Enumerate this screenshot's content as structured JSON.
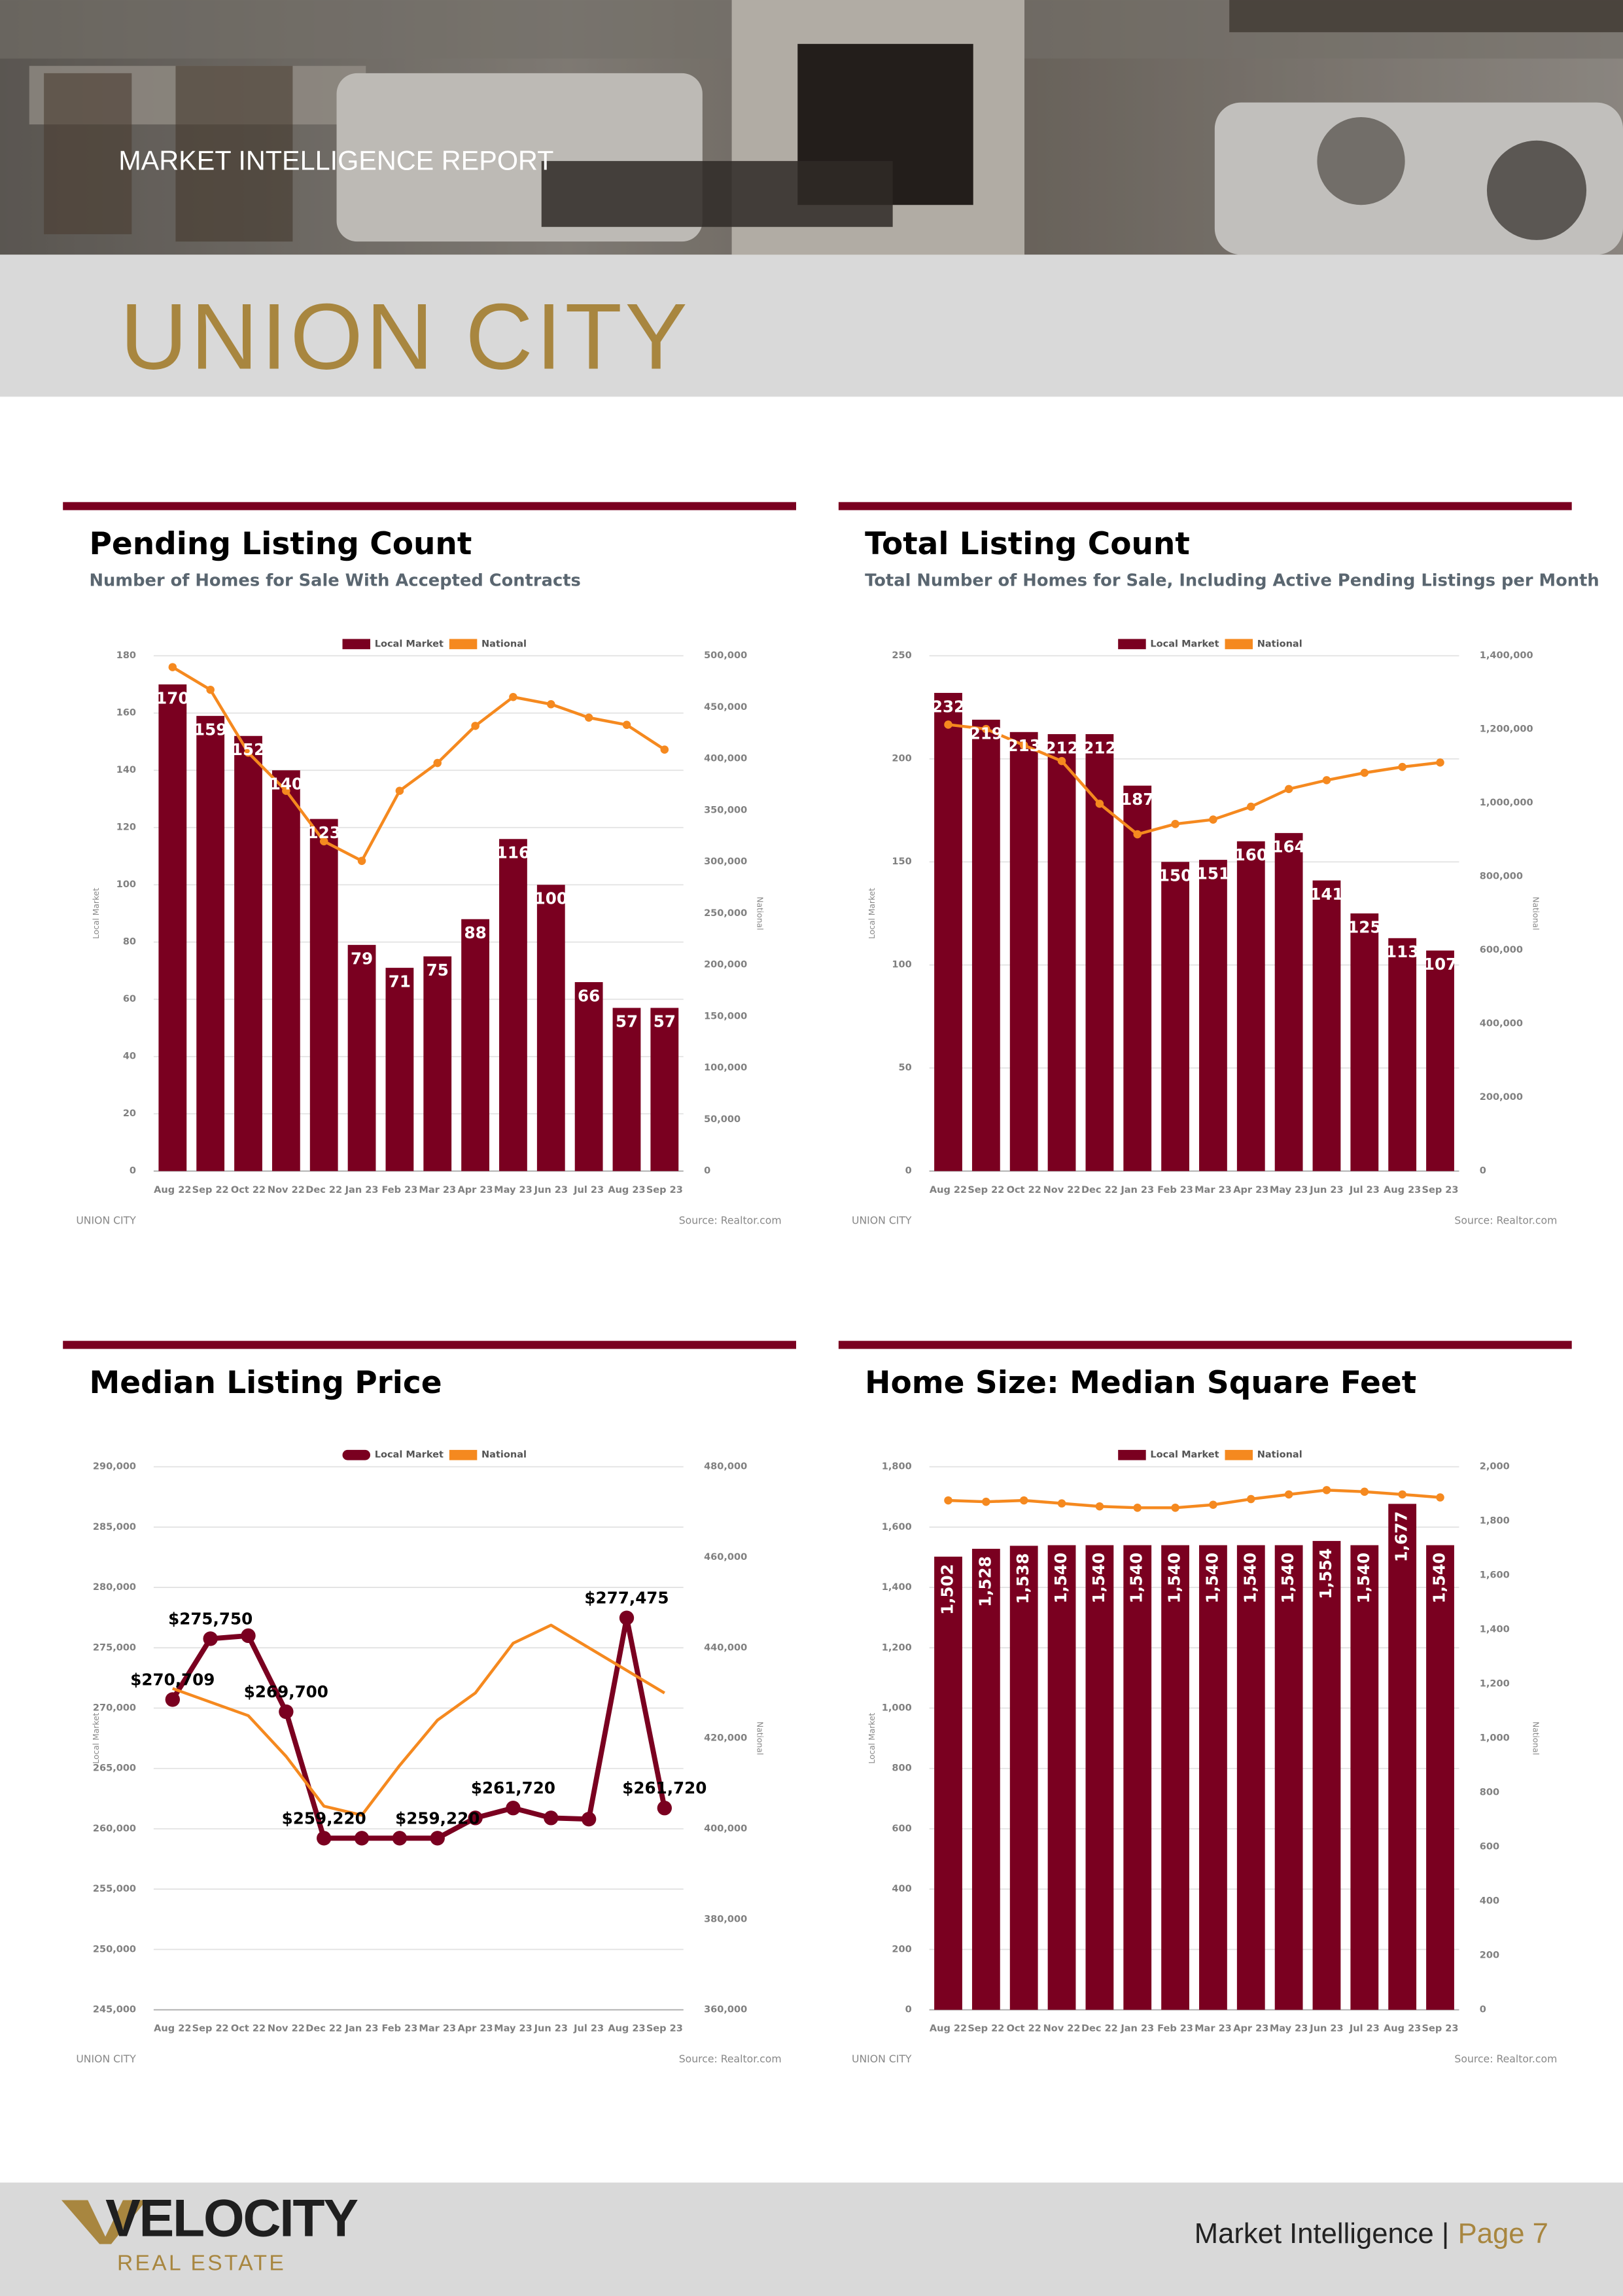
{
  "header": {
    "kicker": "MARKET INTELLIGENCE REPORT",
    "title": "UNION CITY"
  },
  "chart_data": [
    {
      "type": "combo",
      "title": "Pending Listing Count",
      "subtitle": "Number of Homes for Sale With Accepted Contracts",
      "categories": [
        "Aug 22",
        "Sep 22",
        "Oct 22",
        "Nov 22",
        "Dec 22",
        "Jan 23",
        "Feb 23",
        "Mar 23",
        "Apr 23",
        "May 23",
        "Jun 23",
        "Jul 23",
        "Aug 23",
        "Sep 23"
      ],
      "series": [
        {
          "name": "Local Market",
          "color": "#7a0020",
          "type": "bar",
          "axis": "y",
          "values": [
            170,
            159,
            152,
            140,
            123,
            79,
            71,
            75,
            88,
            116,
            100,
            66,
            57,
            57
          ]
        },
        {
          "name": "National",
          "color": "#f5891f",
          "type": "line",
          "axis": "y2",
          "markers": true,
          "values": [
            489000,
            467000,
            406000,
            369000,
            320000,
            301000,
            369000,
            396000,
            432000,
            460000,
            453000,
            440000,
            433000,
            409000
          ]
        }
      ],
      "ylim": [
        0,
        180
      ],
      "yticks": [
        0,
        20,
        40,
        60,
        80,
        100,
        120,
        140,
        160,
        180
      ],
      "y2lim": [
        0,
        500000
      ],
      "y2ticks": [
        0,
        {
          "value": 50000,
          "label": "50,000"
        },
        {
          "value": 100000,
          "label": "100,000"
        },
        {
          "value": 150000,
          "label": "150,000"
        },
        {
          "value": 200000,
          "label": "200,000"
        },
        {
          "value": 250000,
          "label": "250,000"
        },
        {
          "value": 300000,
          "label": "300,000"
        },
        {
          "value": 350000,
          "label": "350,000"
        },
        {
          "value": 400000,
          "label": "400,000"
        },
        {
          "value": 450000,
          "label": "450,000"
        },
        {
          "value": 500000,
          "label": "500,000"
        }
      ],
      "ylabel": "Local Market",
      "y2label": "National",
      "grid": true,
      "legend": "top",
      "footer_left": "UNION CITY",
      "source": "Source: Realtor.com"
    },
    {
      "type": "combo",
      "title": "Total Listing Count",
      "subtitle": "Total Number of Homes for Sale, Including Active Pending Listings per Month",
      "categories": [
        "Aug 22",
        "Sep 22",
        "Oct 22",
        "Nov 22",
        "Dec 22",
        "Jan 23",
        "Feb 23",
        "Mar 23",
        "Apr 23",
        "May 23",
        "Jun 23",
        "Jul 23",
        "Aug 23",
        "Sep 23"
      ],
      "series": [
        {
          "name": "Local Market",
          "color": "#7a0020",
          "type": "bar",
          "axis": "y",
          "values": [
            232,
            219,
            213,
            212,
            212,
            187,
            150,
            151,
            160,
            164,
            141,
            125,
            113,
            107
          ]
        },
        {
          "name": "National",
          "color": "#f5891f",
          "type": "line",
          "axis": "y2",
          "markers": true,
          "values": [
            1213000,
            1201000,
            1157000,
            1114000,
            998000,
            915000,
            943000,
            955000,
            990000,
            1038000,
            1062000,
            1082000,
            1098000,
            1110000
          ]
        }
      ],
      "ylim": [
        0,
        250
      ],
      "yticks": [
        0,
        50,
        100,
        150,
        200,
        250
      ],
      "y2lim": [
        0,
        1400000
      ],
      "y2ticks": [
        0,
        {
          "value": 200000,
          "label": "200,000"
        },
        {
          "value": 400000,
          "label": "400,000"
        },
        {
          "value": 600000,
          "label": "600,000"
        },
        {
          "value": 800000,
          "label": "800,000"
        },
        {
          "value": 1000000,
          "label": "1,000,000"
        },
        {
          "value": 1200000,
          "label": "1,200,000"
        },
        {
          "value": 1400000,
          "label": "1,400,000"
        }
      ],
      "ylabel": "Local Market",
      "y2label": "National",
      "grid": true,
      "legend": "top",
      "footer_left": "UNION CITY",
      "source": "Source: Realtor.com"
    },
    {
      "type": "combo",
      "title": "Median Listing Price",
      "categories": [
        "Aug 22",
        "Sep 22",
        "Oct 22",
        "Nov 22",
        "Dec 22",
        "Jan 23",
        "Feb 23",
        "Mar 23",
        "Apr 23",
        "May 23",
        "Jun 23",
        "Jul 23",
        "Aug 23",
        "Sep 23"
      ],
      "series": [
        {
          "name": "Local Market",
          "color": "#7a0020",
          "type": "line",
          "axis": "y",
          "markers": true,
          "values": [
            270709,
            275750,
            276000,
            269700,
            259220,
            259220,
            259220,
            259220,
            260900,
            261720,
            260900,
            260800,
            277475,
            261720
          ],
          "value_labels": [
            "$270,709",
            "$275,750",
            null,
            "$269,700",
            "$259,220",
            null,
            null,
            "$259,220",
            null,
            "$261,720",
            null,
            null,
            "$277,475",
            "$261,720"
          ]
        },
        {
          "name": "National",
          "color": "#f5891f",
          "type": "line",
          "axis": "y2",
          "markers": false,
          "values": [
            431000,
            428000,
            425000,
            416000,
            405000,
            403000,
            414000,
            424000,
            430000,
            441000,
            445000,
            440000,
            435000,
            430000
          ]
        }
      ],
      "ylim": [
        245000,
        290000
      ],
      "yticks": [
        {
          "value": 245000,
          "label": "245,000"
        },
        {
          "value": 250000,
          "label": "250,000"
        },
        {
          "value": 255000,
          "label": "255,000"
        },
        {
          "value": 260000,
          "label": "260,000"
        },
        {
          "value": 265000,
          "label": "265,000"
        },
        {
          "value": 270000,
          "label": "270,000"
        },
        {
          "value": 275000,
          "label": "275,000"
        },
        {
          "value": 280000,
          "label": "280,000"
        },
        {
          "value": 285000,
          "label": "285,000"
        },
        {
          "value": 290000,
          "label": "290,000"
        }
      ],
      "y2lim": [
        360000,
        480000
      ],
      "y2ticks": [
        {
          "value": 360000,
          "label": "360,000"
        },
        {
          "value": 380000,
          "label": "380,000"
        },
        {
          "value": 400000,
          "label": "400,000"
        },
        {
          "value": 420000,
          "label": "420,000"
        },
        {
          "value": 440000,
          "label": "440,000"
        },
        {
          "value": 460000,
          "label": "460,000"
        },
        {
          "value": 480000,
          "label": "480,000"
        }
      ],
      "ylabel": "Local Market",
      "y2label": "National",
      "grid": true,
      "legend": "top",
      "footer_left": "UNION CITY",
      "source": "Source: Realtor.com"
    },
    {
      "type": "combo",
      "title": "Home Size: Median Square Feet",
      "categories": [
        "Aug 22",
        "Sep 22",
        "Oct 22",
        "Nov 22",
        "Dec 22",
        "Jan 23",
        "Feb 23",
        "Mar 23",
        "Apr 23",
        "May 23",
        "Jun 23",
        "Jul 23",
        "Aug 23",
        "Sep 23"
      ],
      "series": [
        {
          "name": "Local Market",
          "color": "#7a0020",
          "type": "bar",
          "axis": "y",
          "values": [
            1502,
            1528,
            1538,
            1540,
            1540,
            1540,
            1540,
            1540,
            1540,
            1540,
            1554,
            1540,
            1677,
            1540
          ],
          "value_labels": [
            "1,502",
            "1,528",
            "1,538",
            "1,540",
            "1,540",
            "1,540",
            "1,540",
            "1,540",
            "1,540",
            "1,540",
            "1,554",
            "1,540",
            "1,677",
            "1,540"
          ]
        },
        {
          "name": "National",
          "color": "#f5891f",
          "type": "line",
          "axis": "y2",
          "markers": true,
          "values": [
            1876,
            1871,
            1876,
            1865,
            1854,
            1849,
            1849,
            1860,
            1881,
            1898,
            1914,
            1908,
            1898,
            1887
          ]
        }
      ],
      "ylim": [
        0,
        1800
      ],
      "yticks": [
        0,
        200,
        400,
        600,
        800,
        {
          "value": 1000,
          "label": "1,000"
        },
        {
          "value": 1200,
          "label": "1,200"
        },
        {
          "value": 1400,
          "label": "1,400"
        },
        {
          "value": 1600,
          "label": "1,600"
        },
        {
          "value": 1800,
          "label": "1,800"
        }
      ],
      "y2lim": [
        0,
        2000
      ],
      "y2ticks": [
        0,
        200,
        400,
        600,
        800,
        {
          "value": 1000,
          "label": "1,000"
        },
        {
          "value": 1200,
          "label": "1,200"
        },
        {
          "value": 1400,
          "label": "1,400"
        },
        {
          "value": 1600,
          "label": "1,600"
        },
        {
          "value": 1800,
          "label": "1,800"
        },
        {
          "value": 2000,
          "label": "2,000"
        }
      ],
      "ylabel": "Local Market",
      "y2label": "National",
      "grid": true,
      "legend": "top",
      "footer_left": "UNION CITY",
      "source": "Source: Realtor.com"
    }
  ],
  "footer": {
    "logo": "VELOCITY",
    "logo_sub": "REAL ESTATE",
    "label": "Market Intelligence |",
    "page": "Page 7"
  }
}
